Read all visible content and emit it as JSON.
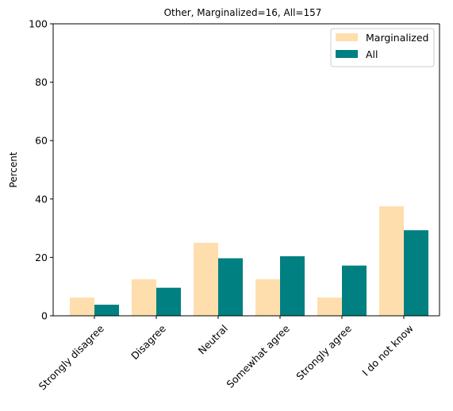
{
  "chart_data": {
    "type": "bar",
    "title": "Other, Marginalized=16, All=157",
    "xlabel": "",
    "ylabel": "Percent",
    "ylim": [
      0,
      100
    ],
    "yticks": [
      "0",
      "20",
      "40",
      "60",
      "80",
      "100"
    ],
    "categories": [
      "Strongly disagree",
      "Disagree",
      "Neutral",
      "Somewhat agree",
      "Strongly agree",
      "I do not know"
    ],
    "series": [
      {
        "name": "Marginalized",
        "color": "#ffdead",
        "values": [
          6.25,
          12.5,
          25.0,
          12.5,
          6.25,
          37.5
        ]
      },
      {
        "name": "All",
        "color": "#008080",
        "values": [
          3.8,
          9.6,
          19.7,
          20.4,
          17.2,
          29.3
        ]
      }
    ],
    "legend": "top-right",
    "grid": false
  }
}
